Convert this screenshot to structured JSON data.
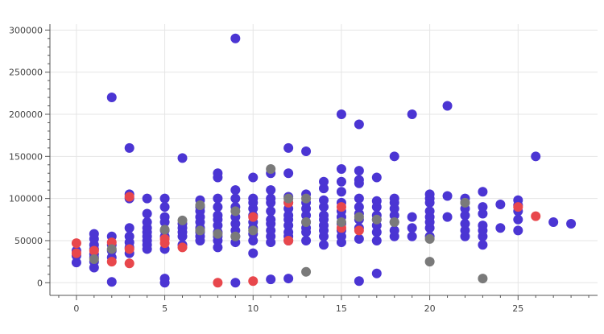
{
  "chart_data": {
    "type": "scatter",
    "title": "",
    "xlabel": "",
    "ylabel": "",
    "xlim": [
      -1.5,
      29.5
    ],
    "ylim": [
      -15000,
      307000
    ],
    "x_ticks": [
      0,
      5,
      10,
      15,
      20,
      25
    ],
    "y_ticks": [
      0,
      50000,
      100000,
      150000,
      200000,
      250000,
      300000
    ],
    "grid": true,
    "legend": "none",
    "series": [
      {
        "color": "#4b35d3",
        "points": [
          [
            0,
            24000
          ],
          [
            0,
            32000
          ],
          [
            0,
            38000
          ],
          [
            1,
            18000
          ],
          [
            1,
            25000
          ],
          [
            1,
            30000
          ],
          [
            1,
            34000
          ],
          [
            1,
            40000
          ],
          [
            1,
            45000
          ],
          [
            1,
            52000
          ],
          [
            1,
            58000
          ],
          [
            2,
            1000
          ],
          [
            2,
            30000
          ],
          [
            2,
            38000
          ],
          [
            2,
            45000
          ],
          [
            2,
            55000
          ],
          [
            2,
            220000
          ],
          [
            3,
            35000
          ],
          [
            3,
            42000
          ],
          [
            3,
            48000
          ],
          [
            3,
            55000
          ],
          [
            3,
            65000
          ],
          [
            3,
            100000
          ],
          [
            3,
            105000
          ],
          [
            3,
            160000
          ],
          [
            4,
            40000
          ],
          [
            4,
            45000
          ],
          [
            4,
            50000
          ],
          [
            4,
            55000
          ],
          [
            4,
            60000
          ],
          [
            4,
            65000
          ],
          [
            4,
            72000
          ],
          [
            4,
            82000
          ],
          [
            4,
            100000
          ],
          [
            5,
            0
          ],
          [
            5,
            5000
          ],
          [
            5,
            40000
          ],
          [
            5,
            55000
          ],
          [
            5,
            62000
          ],
          [
            5,
            72000
          ],
          [
            5,
            78000
          ],
          [
            5,
            90000
          ],
          [
            5,
            100000
          ],
          [
            6,
            45000
          ],
          [
            6,
            55000
          ],
          [
            6,
            60000
          ],
          [
            6,
            65000
          ],
          [
            6,
            70000
          ],
          [
            6,
            148000
          ],
          [
            7,
            50000
          ],
          [
            7,
            55000
          ],
          [
            7,
            60000
          ],
          [
            7,
            65000
          ],
          [
            7,
            72000
          ],
          [
            7,
            78000
          ],
          [
            7,
            85000
          ],
          [
            7,
            90000
          ],
          [
            7,
            98000
          ],
          [
            8,
            42000
          ],
          [
            8,
            50000
          ],
          [
            8,
            55000
          ],
          [
            8,
            60000
          ],
          [
            8,
            68000
          ],
          [
            8,
            75000
          ],
          [
            8,
            80000
          ],
          [
            8,
            90000
          ],
          [
            8,
            100000
          ],
          [
            8,
            125000
          ],
          [
            8,
            130000
          ],
          [
            9,
            0
          ],
          [
            9,
            48000
          ],
          [
            9,
            55000
          ],
          [
            9,
            62000
          ],
          [
            9,
            70000
          ],
          [
            9,
            78000
          ],
          [
            9,
            90000
          ],
          [
            9,
            100000
          ],
          [
            9,
            110000
          ],
          [
            9,
            290000
          ],
          [
            10,
            35000
          ],
          [
            10,
            50000
          ],
          [
            10,
            58000
          ],
          [
            10,
            65000
          ],
          [
            10,
            72000
          ],
          [
            10,
            80000
          ],
          [
            10,
            88000
          ],
          [
            10,
            95000
          ],
          [
            10,
            100000
          ],
          [
            10,
            125000
          ],
          [
            11,
            4000
          ],
          [
            11,
            48000
          ],
          [
            11,
            55000
          ],
          [
            11,
            62000
          ],
          [
            11,
            70000
          ],
          [
            11,
            75000
          ],
          [
            11,
            85000
          ],
          [
            11,
            95000
          ],
          [
            11,
            100000
          ],
          [
            11,
            110000
          ],
          [
            11,
            130000
          ],
          [
            12,
            5000
          ],
          [
            12,
            50000
          ],
          [
            12,
            55000
          ],
          [
            12,
            60000
          ],
          [
            12,
            68000
          ],
          [
            12,
            75000
          ],
          [
            12,
            80000
          ],
          [
            12,
            88000
          ],
          [
            12,
            95000
          ],
          [
            12,
            102000
          ],
          [
            12,
            130000
          ],
          [
            12,
            160000
          ],
          [
            13,
            50000
          ],
          [
            13,
            60000
          ],
          [
            13,
            65000
          ],
          [
            13,
            72000
          ],
          [
            13,
            80000
          ],
          [
            13,
            88000
          ],
          [
            13,
            95000
          ],
          [
            13,
            105000
          ],
          [
            13,
            156000
          ],
          [
            14,
            45000
          ],
          [
            14,
            55000
          ],
          [
            14,
            62000
          ],
          [
            14,
            68000
          ],
          [
            14,
            75000
          ],
          [
            14,
            80000
          ],
          [
            14,
            90000
          ],
          [
            14,
            98000
          ],
          [
            14,
            112000
          ],
          [
            14,
            120000
          ],
          [
            15,
            48000
          ],
          [
            15,
            55000
          ],
          [
            15,
            62000
          ],
          [
            15,
            70000
          ],
          [
            15,
            78000
          ],
          [
            15,
            85000
          ],
          [
            15,
            95000
          ],
          [
            15,
            108000
          ],
          [
            15,
            120000
          ],
          [
            15,
            135000
          ],
          [
            15,
            200000
          ],
          [
            16,
            2000
          ],
          [
            16,
            52000
          ],
          [
            16,
            65000
          ],
          [
            16,
            75000
          ],
          [
            16,
            82000
          ],
          [
            16,
            90000
          ],
          [
            16,
            100000
          ],
          [
            16,
            118000
          ],
          [
            16,
            122000
          ],
          [
            16,
            133000
          ],
          [
            16,
            188000
          ],
          [
            17,
            11000
          ],
          [
            17,
            50000
          ],
          [
            17,
            60000
          ],
          [
            17,
            68000
          ],
          [
            17,
            75000
          ],
          [
            17,
            80000
          ],
          [
            17,
            90000
          ],
          [
            17,
            97000
          ],
          [
            17,
            125000
          ],
          [
            18,
            55000
          ],
          [
            18,
            62000
          ],
          [
            18,
            72000
          ],
          [
            18,
            80000
          ],
          [
            18,
            88000
          ],
          [
            18,
            95000
          ],
          [
            18,
            100000
          ],
          [
            18,
            150000
          ],
          [
            19,
            55000
          ],
          [
            19,
            65000
          ],
          [
            19,
            78000
          ],
          [
            19,
            200000
          ],
          [
            20,
            55000
          ],
          [
            20,
            65000
          ],
          [
            20,
            72000
          ],
          [
            20,
            78000
          ],
          [
            20,
            85000
          ],
          [
            20,
            95000
          ],
          [
            20,
            100000
          ],
          [
            20,
            105000
          ],
          [
            21,
            78000
          ],
          [
            21,
            103000
          ],
          [
            21,
            210000
          ],
          [
            22,
            55000
          ],
          [
            22,
            62000
          ],
          [
            22,
            70000
          ],
          [
            22,
            80000
          ],
          [
            22,
            88000
          ],
          [
            22,
            95000
          ],
          [
            22,
            100000
          ],
          [
            23,
            45000
          ],
          [
            23,
            55000
          ],
          [
            23,
            62000
          ],
          [
            23,
            68000
          ],
          [
            23,
            82000
          ],
          [
            23,
            90000
          ],
          [
            23,
            108000
          ],
          [
            24,
            65000
          ],
          [
            24,
            93000
          ],
          [
            25,
            62000
          ],
          [
            25,
            75000
          ],
          [
            25,
            85000
          ],
          [
            25,
            92000
          ],
          [
            25,
            98000
          ],
          [
            26,
            150000
          ],
          [
            27,
            72000
          ],
          [
            28,
            70000
          ]
        ]
      },
      {
        "color": "#e8474c",
        "points": [
          [
            0,
            47000
          ],
          [
            0,
            35000
          ],
          [
            1,
            38000
          ],
          [
            2,
            25000
          ],
          [
            2,
            48000
          ],
          [
            3,
            23000
          ],
          [
            3,
            40000
          ],
          [
            3,
            102000
          ],
          [
            5,
            47000
          ],
          [
            5,
            52000
          ],
          [
            6,
            42000
          ],
          [
            8,
            0
          ],
          [
            10,
            2000
          ],
          [
            10,
            78000
          ],
          [
            12,
            50000
          ],
          [
            12,
            95000
          ],
          [
            15,
            65000
          ],
          [
            15,
            90000
          ],
          [
            16,
            62000
          ],
          [
            25,
            90000
          ],
          [
            26,
            79000
          ]
        ]
      },
      {
        "color": "#7a7a7a",
        "points": [
          [
            1,
            28000
          ],
          [
            2,
            40000
          ],
          [
            5,
            63000
          ],
          [
            6,
            74000
          ],
          [
            7,
            62000
          ],
          [
            7,
            92000
          ],
          [
            8,
            58000
          ],
          [
            9,
            55000
          ],
          [
            9,
            85000
          ],
          [
            10,
            62000
          ],
          [
            11,
            135000
          ],
          [
            12,
            100000
          ],
          [
            13,
            13000
          ],
          [
            13,
            72000
          ],
          [
            13,
            100000
          ],
          [
            15,
            72000
          ],
          [
            16,
            78000
          ],
          [
            17,
            75000
          ],
          [
            18,
            72000
          ],
          [
            20,
            25000
          ],
          [
            20,
            52000
          ],
          [
            22,
            95000
          ],
          [
            23,
            5000
          ]
        ]
      }
    ]
  }
}
